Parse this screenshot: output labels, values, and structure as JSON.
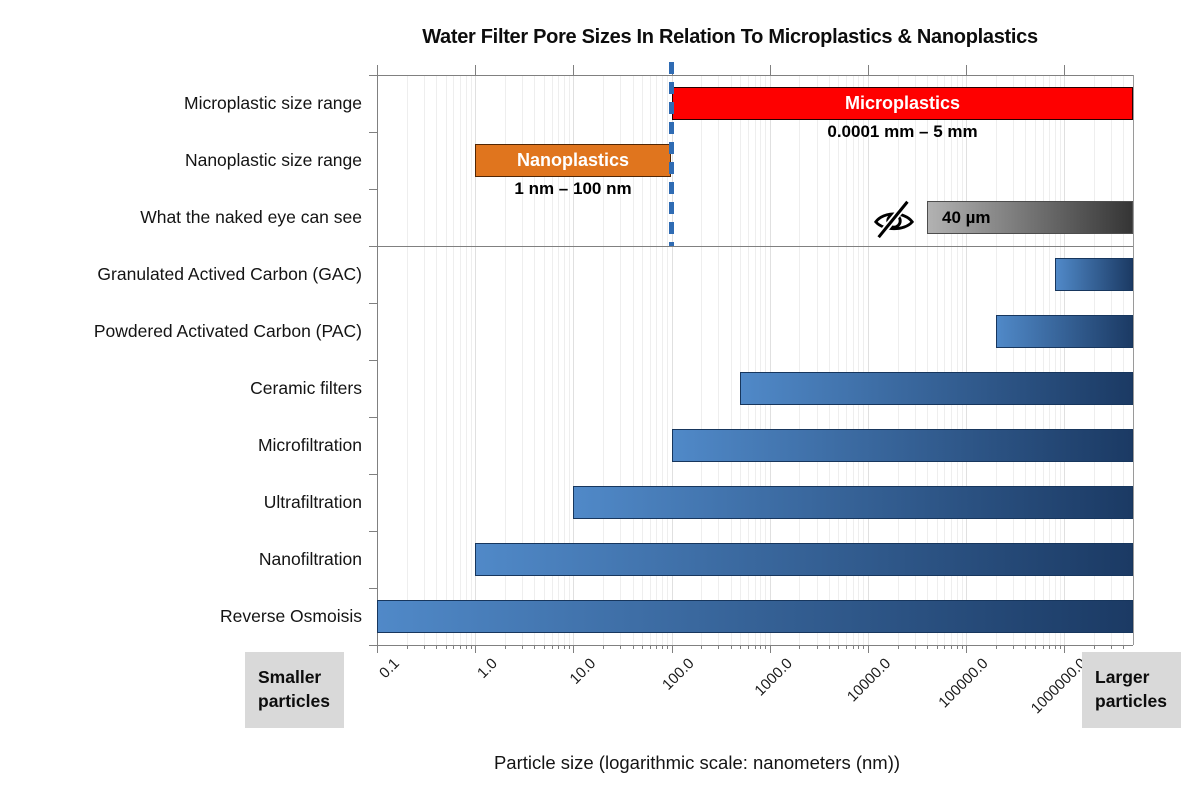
{
  "title": "Water Filter Pore Sizes In Relation To Microplastics & Nanoplastics",
  "x_axis": {
    "label": "Particle size (logarithmic scale: nanometers (nm))",
    "scale": "logarithmic",
    "unit": "nm",
    "tick_labels": [
      "0.1",
      "1.0",
      "10.0",
      "100.0",
      "1000.0",
      "10000.0",
      "100000.0",
      "1000000.0"
    ],
    "tick_values": [
      0.1,
      1,
      10,
      100,
      1000,
      10000,
      100000,
      1000000
    ]
  },
  "annotations": {
    "smaller_particles": "Smaller particles",
    "larger_particles": "Larger particles",
    "threshold_nm": 100
  },
  "colors": {
    "red": "#FE0000",
    "orange": "#E0751E",
    "blue_light": "#5089C8",
    "blue_dark": "#1B3A64",
    "blue_border": "#17365D",
    "gray_light": "#B2B2B2",
    "gray_dark": "#353535",
    "dashed_line": "#2F6BB3",
    "side_box_bg": "#D9D9D9"
  },
  "chart_data": {
    "type": "bar",
    "orientation": "horizontal",
    "x_scale": "log",
    "x_unit": "nm",
    "x_range": [
      0.1,
      5000000
    ],
    "separator_after_row_index": 2,
    "rows": [
      {
        "category": "Microplastic size range",
        "start": 100,
        "end": 5000000,
        "style": "red",
        "bar_label": "Microplastics",
        "range_label": "0.0001 mm – 5 mm"
      },
      {
        "category": "Nanoplastic size range",
        "start": 1,
        "end": 100,
        "style": "orange",
        "bar_label": "Nanoplastics",
        "range_label": "1 nm – 100 nm"
      },
      {
        "category": "What the naked eye can see",
        "start": 40000,
        "end": 5000000,
        "style": "gray",
        "bar_label": "40 µm",
        "icon": "eye-slash-icon"
      },
      {
        "category": "Granulated Actived Carbon (GAC)",
        "start": 800000,
        "end": 5000000,
        "style": "blue"
      },
      {
        "category": "Powdered Activated Carbon (PAC)",
        "start": 200000,
        "end": 5000000,
        "style": "blue"
      },
      {
        "category": "Ceramic filters",
        "start": 500,
        "end": 5000000,
        "style": "blue"
      },
      {
        "category": "Microfiltration",
        "start": 100,
        "end": 5000000,
        "style": "blue"
      },
      {
        "category": "Ultrafiltration",
        "start": 10,
        "end": 5000000,
        "style": "blue"
      },
      {
        "category": "Nanofiltration",
        "start": 1,
        "end": 5000000,
        "style": "blue"
      },
      {
        "category": "Reverse Osmoisis",
        "start": 0.1,
        "end": 5000000,
        "style": "blue"
      }
    ]
  }
}
